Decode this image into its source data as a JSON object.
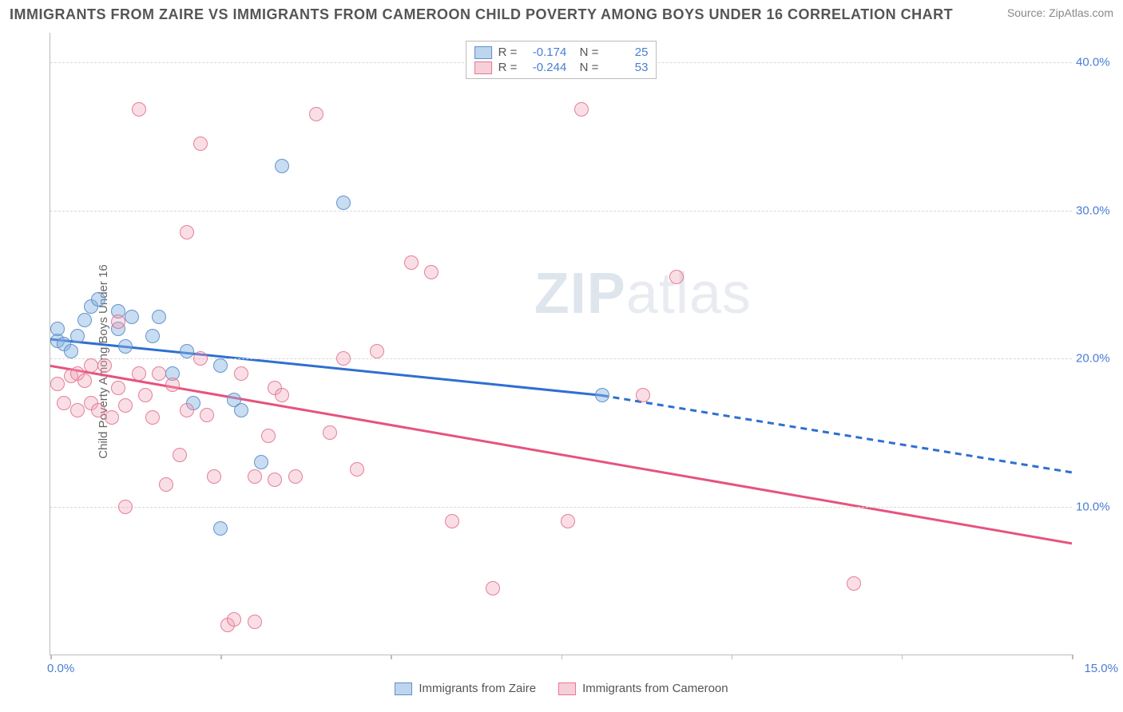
{
  "title": "IMMIGRANTS FROM ZAIRE VS IMMIGRANTS FROM CAMEROON CHILD POVERTY AMONG BOYS UNDER 16 CORRELATION CHART",
  "source_label": "Source: ZipAtlas.com",
  "watermark_bold": "ZIP",
  "watermark_thin": "atlas",
  "ylabel": "Child Poverty Among Boys Under 16",
  "chart": {
    "type": "scatter",
    "xlim": [
      0,
      15
    ],
    "ylim": [
      0,
      42
    ],
    "x_ticks": [
      0,
      5,
      10,
      15
    ],
    "x_tick_marks": [
      0,
      2.5,
      5,
      7.5,
      10,
      12.5,
      15
    ],
    "x_tick_labels": [
      "0.0%",
      "",
      "",
      "15.0%"
    ],
    "y_ticks": [
      10,
      20,
      30,
      40
    ],
    "y_tick_labels": [
      "10.0%",
      "20.0%",
      "30.0%",
      "40.0%"
    ],
    "grid_color": "#d8d8d8",
    "border_color": "#bbbbbb",
    "background_color": "#ffffff",
    "text_color": "#555555",
    "value_color": "#4a7dd4",
    "series": [
      {
        "name": "Immigrants from Zaire",
        "fill": "rgba(134,178,226,0.45)",
        "stroke": "rgba(90,140,200,0.9)",
        "trend_color": "#2f6fd0",
        "trend_width": 3,
        "R": "-0.174",
        "N": "25",
        "trend_solid": {
          "x1": 0,
          "y1": 21.3,
          "x2": 8.1,
          "y2": 17.5
        },
        "trend_dash": {
          "x1": 8.1,
          "y1": 17.5,
          "x2": 15,
          "y2": 12.3
        },
        "points": [
          [
            0.1,
            21.2
          ],
          [
            0.1,
            22.0
          ],
          [
            0.2,
            21.0
          ],
          [
            0.3,
            20.5
          ],
          [
            0.4,
            21.5
          ],
          [
            0.6,
            23.5
          ],
          [
            0.7,
            24.0
          ],
          [
            1.0,
            23.2
          ],
          [
            1.0,
            22.0
          ],
          [
            1.2,
            22.8
          ],
          [
            1.5,
            21.5
          ],
          [
            1.6,
            22.8
          ],
          [
            2.0,
            20.5
          ],
          [
            2.1,
            17.0
          ],
          [
            2.5,
            19.5
          ],
          [
            2.5,
            8.5
          ],
          [
            2.7,
            17.2
          ],
          [
            3.1,
            13.0
          ],
          [
            3.4,
            33.0
          ],
          [
            4.3,
            30.5
          ],
          [
            1.8,
            19.0
          ],
          [
            1.1,
            20.8
          ],
          [
            0.5,
            22.6
          ],
          [
            2.8,
            16.5
          ],
          [
            8.1,
            17.5
          ]
        ]
      },
      {
        "name": "Immigrants from Cameroon",
        "fill": "rgba(240,160,180,0.35)",
        "stroke": "rgba(225,110,140,0.85)",
        "trend_color": "#e6537e",
        "trend_width": 3,
        "R": "-0.244",
        "N": "53",
        "trend_solid": {
          "x1": 0,
          "y1": 19.5,
          "x2": 15,
          "y2": 7.5
        },
        "trend_dash": null,
        "points": [
          [
            0.1,
            18.3
          ],
          [
            0.2,
            17.0
          ],
          [
            0.3,
            18.8
          ],
          [
            0.4,
            19.0
          ],
          [
            0.4,
            16.5
          ],
          [
            0.5,
            18.5
          ],
          [
            0.6,
            17.0
          ],
          [
            0.6,
            19.5
          ],
          [
            0.7,
            16.5
          ],
          [
            0.8,
            19.5
          ],
          [
            0.9,
            16.0
          ],
          [
            1.0,
            18.0
          ],
          [
            1.0,
            22.5
          ],
          [
            1.1,
            10.0
          ],
          [
            1.1,
            16.8
          ],
          [
            1.3,
            19.0
          ],
          [
            1.3,
            36.8
          ],
          [
            1.4,
            17.5
          ],
          [
            1.5,
            16.0
          ],
          [
            1.6,
            19.0
          ],
          [
            1.7,
            11.5
          ],
          [
            1.8,
            18.2
          ],
          [
            2.0,
            28.5
          ],
          [
            2.0,
            16.5
          ],
          [
            2.2,
            20.0
          ],
          [
            2.2,
            34.5
          ],
          [
            2.3,
            16.2
          ],
          [
            2.6,
            2.0
          ],
          [
            2.7,
            2.4
          ],
          [
            2.8,
            19.0
          ],
          [
            3.0,
            2.2
          ],
          [
            3.0,
            12.0
          ],
          [
            3.2,
            14.8
          ],
          [
            3.3,
            18.0
          ],
          [
            3.3,
            11.8
          ],
          [
            3.4,
            17.5
          ],
          [
            3.6,
            12.0
          ],
          [
            3.9,
            36.5
          ],
          [
            4.1,
            15.0
          ],
          [
            4.3,
            20.0
          ],
          [
            4.5,
            12.5
          ],
          [
            5.3,
            26.5
          ],
          [
            5.6,
            25.8
          ],
          [
            5.9,
            9.0
          ],
          [
            6.5,
            4.5
          ],
          [
            7.6,
            9.0
          ],
          [
            7.8,
            36.8
          ],
          [
            8.7,
            17.5
          ],
          [
            9.2,
            25.5
          ],
          [
            4.8,
            20.5
          ],
          [
            11.8,
            4.8
          ],
          [
            1.9,
            13.5
          ],
          [
            2.4,
            12.0
          ]
        ]
      }
    ]
  },
  "legend_bottom": [
    "Immigrants from Zaire",
    "Immigrants from Cameroon"
  ]
}
